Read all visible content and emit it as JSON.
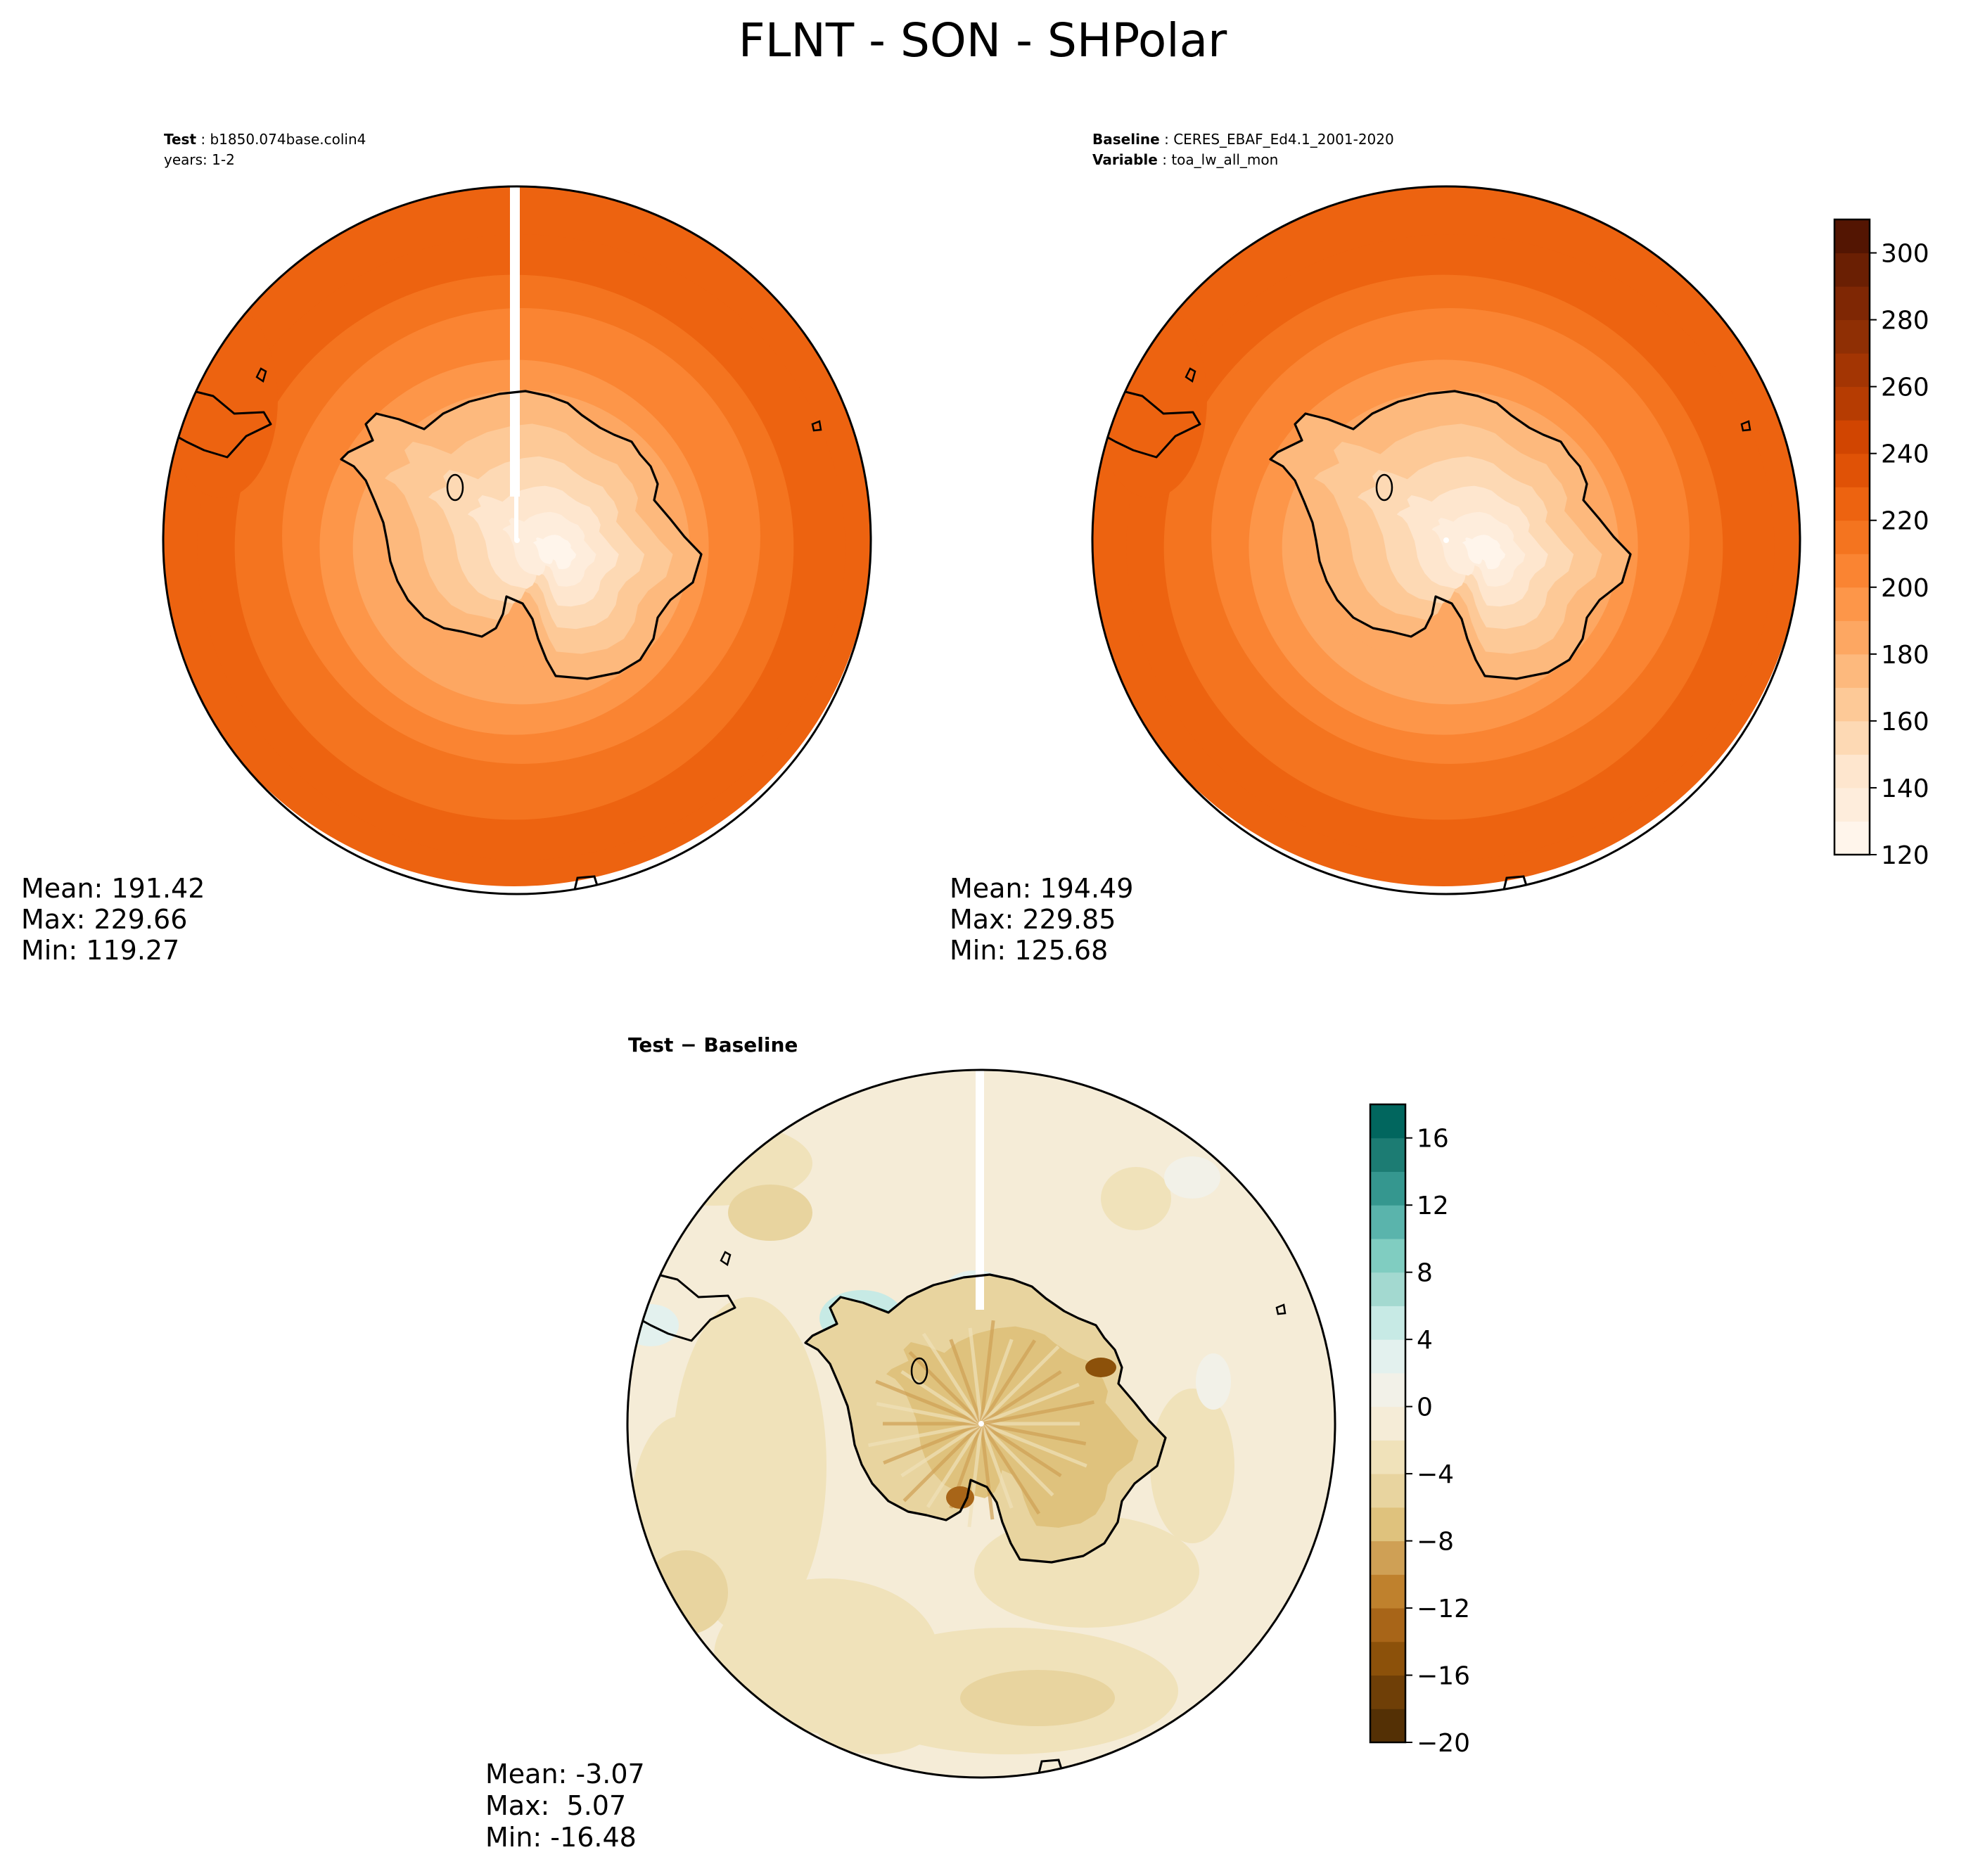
{
  "figure": {
    "title": "FLNT - SON - SHPolar"
  },
  "chart_data": [
    {
      "type": "heatmap",
      "projection": "south polar stereographic",
      "panel": "test",
      "header": [
        {
          "label": "Test",
          "sep": ":",
          "value": "b1850.074base.colin4"
        },
        {
          "label": "",
          "sep": "",
          "value": "years: 1-2"
        }
      ],
      "stats": {
        "mean": "Mean: 191.42",
        "max": "Max: 229.66",
        "min": "Min: 119.27"
      },
      "field_range": [
        119.27,
        229.66
      ],
      "has_missing_strip": true
    },
    {
      "type": "heatmap",
      "projection": "south polar stereographic",
      "panel": "baseline",
      "header": [
        {
          "label": "Baseline",
          "sep": ":",
          "value": "CERES_EBAF_Ed4.1_2001-2020"
        },
        {
          "label": "Variable",
          "sep": ":",
          "value": "toa_lw_all_mon"
        }
      ],
      "stats": {
        "mean": "Mean: 194.49",
        "max": "Max: 229.85",
        "min": "Min: 125.68"
      },
      "field_range": [
        125.68,
        229.85
      ],
      "has_missing_strip": false,
      "colorbar": {
        "ticks": [
          "120",
          "140",
          "160",
          "180",
          "200",
          "220",
          "240",
          "260",
          "280",
          "300"
        ],
        "range": [
          120,
          310
        ],
        "levels": [
          120,
          130,
          140,
          150,
          160,
          170,
          180,
          190,
          200,
          210,
          220,
          230,
          240,
          250,
          260,
          270,
          280,
          290,
          300,
          310
        ],
        "colors": [
          "#fff5eb",
          "#feeddc",
          "#fee6ce",
          "#fdd9b4",
          "#fdc997",
          "#fdb97d",
          "#fda762",
          "#fd9649",
          "#fa8432",
          "#f4741f",
          "#ed6310",
          "#e05206",
          "#d14501",
          "#b63c02",
          "#a33503",
          "#8f2f04",
          "#7f2704",
          "#6a1f03",
          "#531502"
        ]
      }
    },
    {
      "type": "heatmap",
      "projection": "south polar stereographic",
      "panel": "difference",
      "header": [
        {
          "label": "Test − Baseline",
          "sep": "",
          "value": ""
        }
      ],
      "stats": {
        "mean": "Mean: -3.07",
        "max": "Max:  5.07",
        "min": "Min: -16.48"
      },
      "field_range": [
        -16.48,
        5.07
      ],
      "has_missing_strip": true,
      "colorbar": {
        "ticks": [
          "−20",
          "−16",
          "−12",
          "−8",
          "−4",
          "0",
          "4",
          "8",
          "12",
          "16"
        ],
        "range": [
          -20,
          18
        ],
        "levels": [
          -20,
          -18,
          -16,
          -14,
          -12,
          -10,
          -8,
          -6,
          -4,
          -2,
          0,
          2,
          4,
          6,
          8,
          10,
          12,
          14,
          16,
          18
        ],
        "colors": [
          "#543005",
          "#6f3f07",
          "#8c510a",
          "#a86518",
          "#bf812d",
          "#cfa055",
          "#dfc27d",
          "#e8d49f",
          "#f0e2ba",
          "#f5ecd7",
          "#f2f1e8",
          "#e3f1ee",
          "#c7eae5",
          "#a3d9d0",
          "#80cdc1",
          "#5ab4ac",
          "#35978f",
          "#1c7c73",
          "#01665e",
          "#003c30"
        ]
      }
    }
  ]
}
